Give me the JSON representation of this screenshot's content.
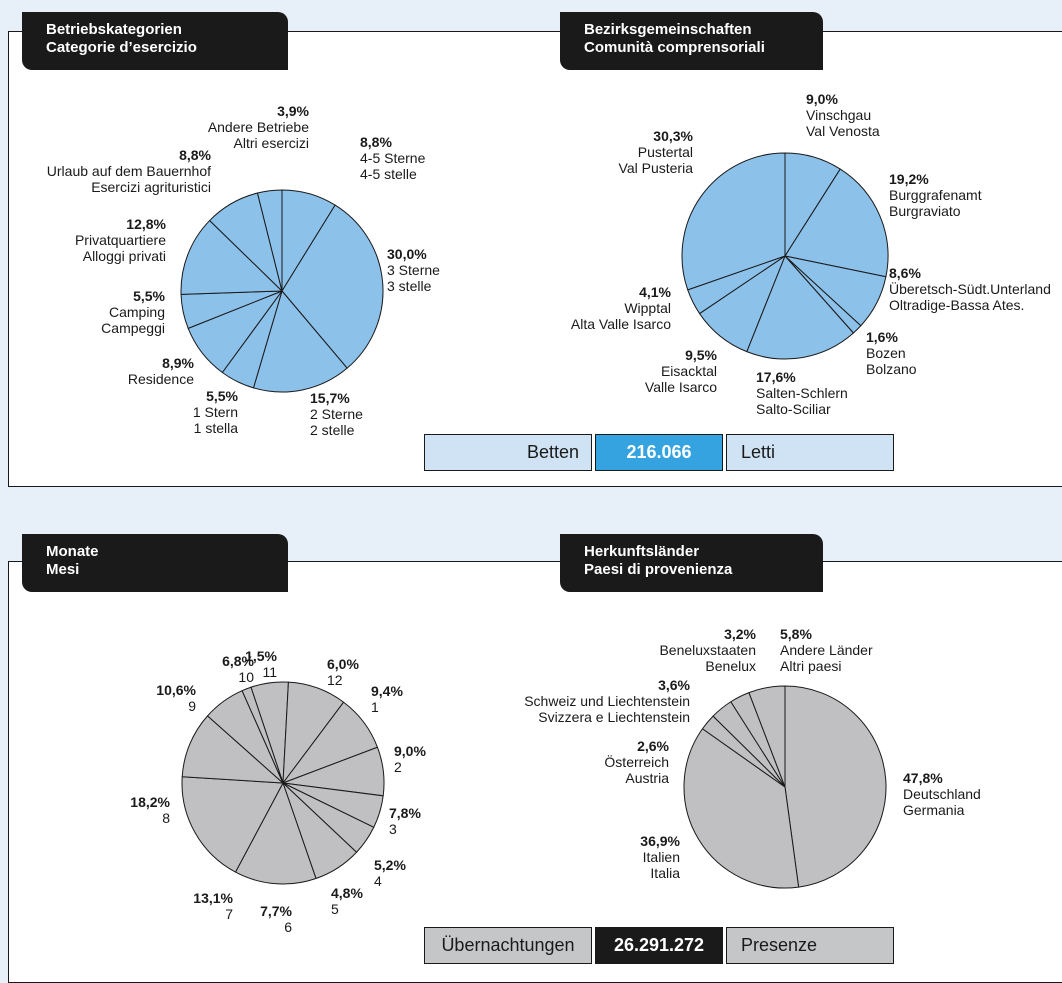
{
  "colors": {
    "blue_slice": "#8cc1ea",
    "grey_slice": "#c0c0c2",
    "blue_total_bg": "#cfe3f5",
    "blue_total_accent": "#35a3e0",
    "grey_total_bg": "#c5c6c8",
    "grey_total_accent": "#1a1a1a",
    "page_bg": "#e7f0f9"
  },
  "panel_top": {
    "tab_left": [
      "Betriebskategorien",
      "Categorie d’esercizio"
    ],
    "tab_right": [
      "Bezirksgemeinschaften",
      "Comunità comprensoriali"
    ],
    "total": {
      "label_de": "Betten",
      "value": "216.066",
      "label_it": "Letti"
    }
  },
  "panel_bottom": {
    "tab_left": [
      "Monate",
      "Mesi"
    ],
    "tab_right": [
      "Herkunftsländer",
      "Paesi di provenienza"
    ],
    "total": {
      "label_de": "Übernachtungen",
      "value": "26.291.272",
      "label_it": "Presenze"
    }
  },
  "chart_data": [
    {
      "type": "pie",
      "title": "Betriebskategorien / Categorie d’esercizio",
      "slices": [
        {
          "pct": "8,8%",
          "value": 8.8,
          "lines": [
            "4-5 Sterne",
            "4-5 stelle"
          ]
        },
        {
          "pct": "30,0%",
          "value": 30.0,
          "lines": [
            "3 Sterne",
            "3 stelle"
          ]
        },
        {
          "pct": "15,7%",
          "value": 15.7,
          "lines": [
            "2 Sterne",
            "2 stelle"
          ]
        },
        {
          "pct": "5,5%",
          "value": 5.5,
          "lines": [
            "1 Stern",
            "1 stella"
          ]
        },
        {
          "pct": "8,9%",
          "value": 8.9,
          "lines": [
            "Residence"
          ]
        },
        {
          "pct": "5,5%",
          "value": 5.5,
          "lines": [
            "Camping",
            "Campeggi"
          ]
        },
        {
          "pct": "12,8%",
          "value": 12.8,
          "lines": [
            "Privatquartiere",
            "Alloggi privati"
          ]
        },
        {
          "pct": "8,8%",
          "value": 8.8,
          "lines": [
            "Urlaub auf dem Bauernhof",
            "Esercizi agrituristici"
          ]
        },
        {
          "pct": "3,9%",
          "value": 3.9,
          "lines": [
            "Andere Betriebe",
            "Altri esercizi"
          ]
        }
      ]
    },
    {
      "type": "pie",
      "title": "Bezirksgemeinschaften / Comunità comprensoriali",
      "slices": [
        {
          "pct": "9,0%",
          "value": 9.0,
          "lines": [
            "Vinschgau",
            "Val Venosta"
          ]
        },
        {
          "pct": "19,2%",
          "value": 19.2,
          "lines": [
            "Burggrafenamt",
            "Burgraviato"
          ]
        },
        {
          "pct": "8,6%",
          "value": 8.6,
          "lines": [
            "Überetsch-Südt.Unterland",
            "Oltradige-Bassa Ates."
          ]
        },
        {
          "pct": "1,6%",
          "value": 1.6,
          "lines": [
            "Bozen",
            "Bolzano"
          ]
        },
        {
          "pct": "17,6%",
          "value": 17.6,
          "lines": [
            "Salten-Schlern",
            "Salto-Sciliar"
          ]
        },
        {
          "pct": "9,5%",
          "value": 9.5,
          "lines": [
            "Eisacktal",
            "Valle Isarco"
          ]
        },
        {
          "pct": "4,1%",
          "value": 4.1,
          "lines": [
            "Wipptal",
            "Alta Valle Isarco"
          ]
        },
        {
          "pct": "30,3%",
          "value": 30.3,
          "lines": [
            "Pustertal",
            "Val Pusteria"
          ]
        }
      ]
    },
    {
      "type": "pie",
      "title": "Monate / Mesi",
      "slices": [
        {
          "pct": "6,0%",
          "value": 6.0,
          "lines": [
            "12"
          ]
        },
        {
          "pct": "9,4%",
          "value": 9.4,
          "lines": [
            "1"
          ]
        },
        {
          "pct": "9,0%",
          "value": 9.0,
          "lines": [
            "2"
          ]
        },
        {
          "pct": "7,8%",
          "value": 7.8,
          "lines": [
            "3"
          ]
        },
        {
          "pct": "5,2%",
          "value": 5.2,
          "lines": [
            "4"
          ]
        },
        {
          "pct": "4,8%",
          "value": 4.8,
          "lines": [
            "5"
          ]
        },
        {
          "pct": "7,7%",
          "value": 7.7,
          "lines": [
            "6"
          ]
        },
        {
          "pct": "13,1%",
          "value": 13.1,
          "lines": [
            "7"
          ]
        },
        {
          "pct": "18,2%",
          "value": 18.2,
          "lines": [
            "8"
          ]
        },
        {
          "pct": "10,6%",
          "value": 10.6,
          "lines": [
            "9"
          ]
        },
        {
          "pct": "6,8%",
          "value": 6.8,
          "lines": [
            "10"
          ]
        },
        {
          "pct": "1,5%",
          "value": 1.5,
          "lines": [
            "11"
          ]
        }
      ]
    },
    {
      "type": "pie",
      "title": "Herkunftsländer / Paesi di provenienza",
      "slices": [
        {
          "pct": "47,8%",
          "value": 47.8,
          "lines": [
            "Deutschland",
            "Germania"
          ]
        },
        {
          "pct": "36,9%",
          "value": 36.9,
          "lines": [
            "Italien",
            "Italia"
          ]
        },
        {
          "pct": "2,6%",
          "value": 2.6,
          "lines": [
            "Österreich",
            "Austria"
          ]
        },
        {
          "pct": "3,6%",
          "value": 3.6,
          "lines": [
            "Schweiz und Liechtenstein",
            "Svizzera e Liechtenstein"
          ]
        },
        {
          "pct": "3,2%",
          "value": 3.2,
          "lines": [
            "Beneluxstaaten",
            "Benelux"
          ]
        },
        {
          "pct": "5,8%",
          "value": 5.8,
          "lines": [
            "Andere Länder",
            "Altri paesi"
          ]
        }
      ]
    }
  ]
}
